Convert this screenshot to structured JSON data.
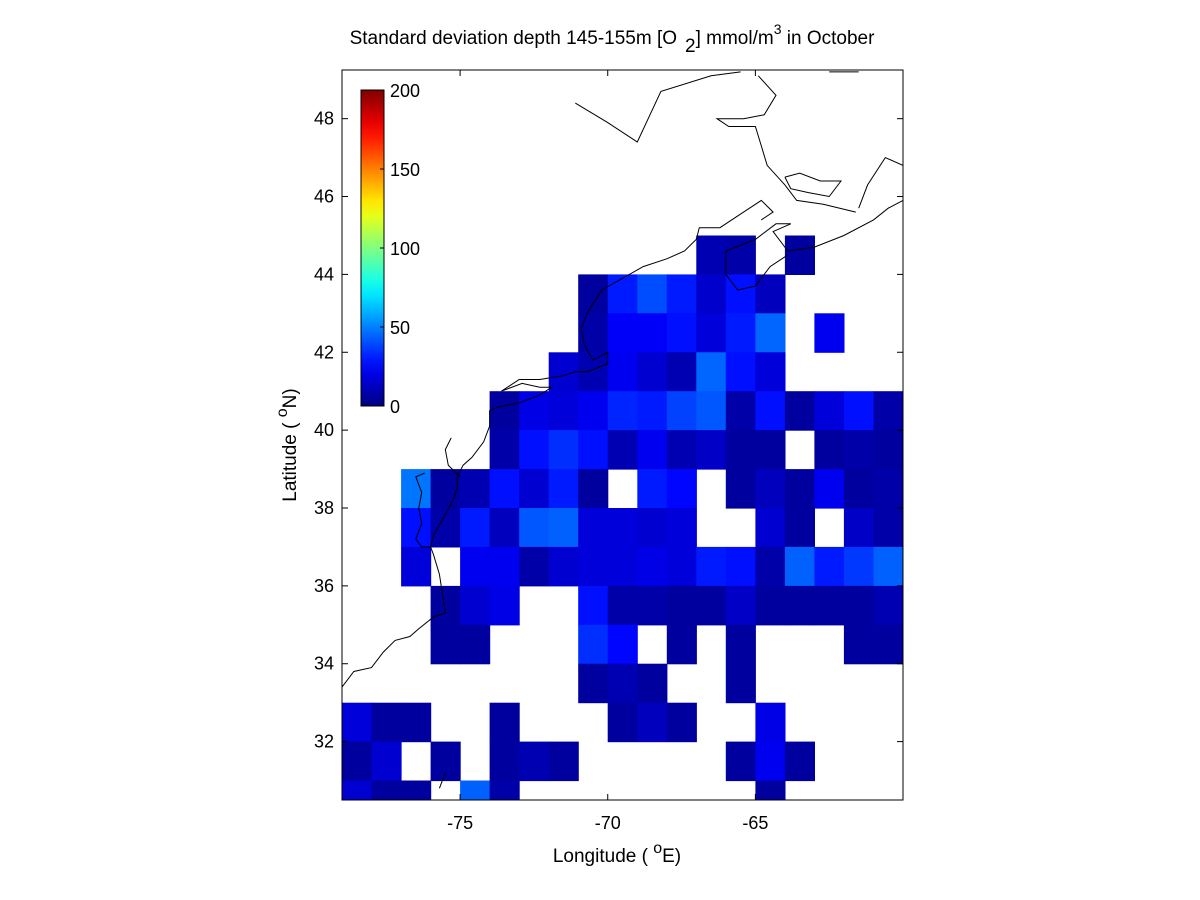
{
  "chart_data": {
    "type": "heatmap",
    "title": {
      "prefix": "Standard deviation depth 145-155m [O",
      "subscript": "2",
      "middle": "] mmol/m",
      "superscript": "3",
      "suffix": " in October"
    },
    "xlabel": {
      "prefix": "Longitude ( ",
      "degree": "o",
      "suffix": "E)"
    },
    "ylabel": {
      "prefix": "Latitude ( ",
      "degree": "o",
      "suffix": "N)"
    },
    "xlim": [
      -79,
      -60
    ],
    "ylim": [
      30.5,
      49.25
    ],
    "xticks": [
      -75,
      -70,
      -65
    ],
    "xtick_labels": [
      "-75",
      "-70",
      "-65"
    ],
    "yticks": [
      32,
      34,
      36,
      38,
      40,
      42,
      44,
      46,
      48
    ],
    "ytick_labels": [
      "32",
      "34",
      "36",
      "38",
      "40",
      "42",
      "44",
      "46",
      "48"
    ],
    "colorbar": {
      "colormap": "jet",
      "range": [
        0,
        200
      ],
      "ticks": [
        0,
        50,
        100,
        150,
        200
      ],
      "tick_labels": [
        "0",
        "50",
        "100",
        "150",
        "200"
      ],
      "placement": "top-left inside axes"
    },
    "cell_size_deg": 1,
    "cells": [
      [
        -66.5,
        44.5,
        10
      ],
      [
        -65.5,
        44.5,
        8
      ],
      [
        -63.5,
        44.5,
        6
      ],
      [
        -70.5,
        43.5,
        6
      ],
      [
        -69.5,
        43.5,
        30
      ],
      [
        -68.5,
        43.5,
        40
      ],
      [
        -67.5,
        43.5,
        30
      ],
      [
        -66.5,
        43.5,
        15
      ],
      [
        -65.5,
        43.5,
        28
      ],
      [
        -64.5,
        43.5,
        12
      ],
      [
        -70.5,
        42.5,
        8
      ],
      [
        -69.5,
        42.5,
        24
      ],
      [
        -68.5,
        42.5,
        24
      ],
      [
        -67.5,
        42.5,
        28
      ],
      [
        -66.5,
        42.5,
        18
      ],
      [
        -65.5,
        42.5,
        30
      ],
      [
        -64.5,
        42.5,
        45
      ],
      [
        -62.5,
        42.5,
        22
      ],
      [
        -71.5,
        41.5,
        16
      ],
      [
        -70.5,
        41.5,
        10
      ],
      [
        -69.5,
        41.5,
        22
      ],
      [
        -68.5,
        41.5,
        16
      ],
      [
        -67.5,
        41.5,
        10
      ],
      [
        -66.5,
        41.5,
        45
      ],
      [
        -65.5,
        41.5,
        28
      ],
      [
        -64.5,
        41.5,
        18
      ],
      [
        -73.5,
        40.5,
        6
      ],
      [
        -72.5,
        40.5,
        20
      ],
      [
        -71.5,
        40.5,
        18
      ],
      [
        -70.5,
        40.5,
        22
      ],
      [
        -69.5,
        40.5,
        32
      ],
      [
        -68.5,
        40.5,
        30
      ],
      [
        -67.5,
        40.5,
        38
      ],
      [
        -66.5,
        40.5,
        42
      ],
      [
        -65.5,
        40.5,
        8
      ],
      [
        -64.5,
        40.5,
        28
      ],
      [
        -63.5,
        40.5,
        6
      ],
      [
        -62.5,
        40.5,
        18
      ],
      [
        -61.5,
        40.5,
        28
      ],
      [
        -60.5,
        40.5,
        8
      ],
      [
        -73.5,
        39.5,
        8
      ],
      [
        -72.5,
        39.5,
        28
      ],
      [
        -71.5,
        39.5,
        34
      ],
      [
        -70.5,
        39.5,
        28
      ],
      [
        -69.5,
        39.5,
        10
      ],
      [
        -68.5,
        39.5,
        22
      ],
      [
        -67.5,
        39.5,
        10
      ],
      [
        -66.5,
        39.5,
        14
      ],
      [
        -65.5,
        39.5,
        6
      ],
      [
        -64.5,
        39.5,
        6
      ],
      [
        -62.5,
        39.5,
        6
      ],
      [
        -61.5,
        39.5,
        8
      ],
      [
        -60.5,
        39.5,
        6
      ],
      [
        -76.5,
        38.5,
        48
      ],
      [
        -75.5,
        38.5,
        6
      ],
      [
        -74.5,
        38.5,
        10
      ],
      [
        -73.5,
        38.5,
        28
      ],
      [
        -72.5,
        38.5,
        16
      ],
      [
        -71.5,
        38.5,
        30
      ],
      [
        -70.5,
        38.5,
        6
      ],
      [
        -68.5,
        38.5,
        30
      ],
      [
        -67.5,
        38.5,
        26
      ],
      [
        -65.5,
        38.5,
        6
      ],
      [
        -64.5,
        38.5,
        12
      ],
      [
        -63.5,
        38.5,
        6
      ],
      [
        -62.5,
        38.5,
        22
      ],
      [
        -61.5,
        38.5,
        6
      ],
      [
        -60.5,
        38.5,
        8
      ],
      [
        -76.5,
        37.5,
        28
      ],
      [
        -75.5,
        37.5,
        8
      ],
      [
        -74.5,
        37.5,
        30
      ],
      [
        -73.5,
        37.5,
        12
      ],
      [
        -72.5,
        37.5,
        42
      ],
      [
        -71.5,
        37.5,
        44
      ],
      [
        -70.5,
        37.5,
        18
      ],
      [
        -69.5,
        37.5,
        18
      ],
      [
        -68.5,
        37.5,
        16
      ],
      [
        -67.5,
        37.5,
        18
      ],
      [
        -64.5,
        37.5,
        16
      ],
      [
        -63.5,
        37.5,
        6
      ],
      [
        -61.5,
        37.5,
        14
      ],
      [
        -60.5,
        37.5,
        8
      ],
      [
        -76.5,
        36.5,
        18
      ],
      [
        -74.5,
        36.5,
        22
      ],
      [
        -73.5,
        36.5,
        22
      ],
      [
        -72.5,
        36.5,
        8
      ],
      [
        -71.5,
        36.5,
        16
      ],
      [
        -70.5,
        36.5,
        18
      ],
      [
        -69.5,
        36.5,
        18
      ],
      [
        -68.5,
        36.5,
        20
      ],
      [
        -67.5,
        36.5,
        18
      ],
      [
        -66.5,
        36.5,
        30
      ],
      [
        -65.5,
        36.5,
        28
      ],
      [
        -64.5,
        36.5,
        8
      ],
      [
        -63.5,
        36.5,
        44
      ],
      [
        -62.5,
        36.5,
        30
      ],
      [
        -61.5,
        36.5,
        36
      ],
      [
        -60.5,
        36.5,
        44
      ],
      [
        -75.5,
        35.5,
        6
      ],
      [
        -74.5,
        35.5,
        16
      ],
      [
        -73.5,
        35.5,
        20
      ],
      [
        -70.5,
        35.5,
        28
      ],
      [
        -69.5,
        35.5,
        8
      ],
      [
        -68.5,
        35.5,
        8
      ],
      [
        -67.5,
        35.5,
        6
      ],
      [
        -66.5,
        35.5,
        6
      ],
      [
        -65.5,
        35.5,
        14
      ],
      [
        -64.5,
        35.5,
        6
      ],
      [
        -63.5,
        35.5,
        6
      ],
      [
        -62.5,
        35.5,
        6
      ],
      [
        -61.5,
        35.5,
        6
      ],
      [
        -60.5,
        35.5,
        10
      ],
      [
        -75.5,
        34.5,
        6
      ],
      [
        -74.5,
        34.5,
        6
      ],
      [
        -70.5,
        34.5,
        34
      ],
      [
        -69.5,
        34.5,
        26
      ],
      [
        -67.5,
        34.5,
        6
      ],
      [
        -65.5,
        34.5,
        6
      ],
      [
        -61.5,
        34.5,
        6
      ],
      [
        -60.5,
        34.5,
        6
      ],
      [
        -70.5,
        33.5,
        6
      ],
      [
        -69.5,
        33.5,
        10
      ],
      [
        -68.5,
        33.5,
        6
      ],
      [
        -65.5,
        33.5,
        6
      ],
      [
        -78.5,
        32.5,
        18
      ],
      [
        -77.5,
        32.5,
        6
      ],
      [
        -76.5,
        32.5,
        6
      ],
      [
        -73.5,
        32.5,
        6
      ],
      [
        -69.5,
        32.5,
        6
      ],
      [
        -68.5,
        32.5,
        12
      ],
      [
        -67.5,
        32.5,
        6
      ],
      [
        -64.5,
        32.5,
        20
      ],
      [
        -78.5,
        31.5,
        6
      ],
      [
        -77.5,
        31.5,
        16
      ],
      [
        -75.5,
        31.5,
        6
      ],
      [
        -73.5,
        31.5,
        6
      ],
      [
        -72.5,
        31.5,
        10
      ],
      [
        -71.5,
        31.5,
        6
      ],
      [
        -65.5,
        31.5,
        6
      ],
      [
        -64.5,
        31.5,
        22
      ],
      [
        -63.5,
        31.5,
        6
      ],
      [
        -78.5,
        30.5,
        16
      ],
      [
        -77.5,
        30.5,
        6
      ],
      [
        -76.5,
        30.5,
        6
      ],
      [
        -74.5,
        30.5,
        44
      ],
      [
        -73.5,
        30.5,
        8
      ],
      [
        -64.5,
        30.5,
        6
      ]
    ]
  }
}
